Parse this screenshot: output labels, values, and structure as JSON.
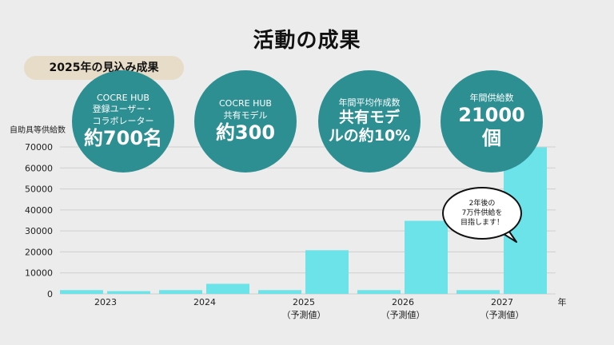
{
  "page": {
    "title": "活動の成果",
    "badge": "2025年の見込み成果",
    "callout": "2年後の\n7万件供給を\n目指します！"
  },
  "stats": [
    {
      "small": "COCRE HUB\n登録ユーザー・\nコラボレーター",
      "large": "約700名"
    },
    {
      "small": "COCRE HUB\n共有モデル",
      "large": "約300"
    },
    {
      "small": "年間平均作成数",
      "large": "共有モデ\nルの約10%"
    },
    {
      "small": "年間供給数",
      "large": "21000\n個"
    }
  ],
  "colors": {
    "bar": "#6ce3e8",
    "circle": "#2e8f93",
    "grid": "#cfcfcf",
    "badge": "#e6dcc8"
  },
  "chart_data": {
    "type": "bar",
    "ylabel": "自助具等供給数",
    "xlabel": "年",
    "ylim": [
      0,
      70000
    ],
    "yticks": [
      0,
      10000,
      20000,
      30000,
      40000,
      50000,
      60000,
      70000
    ],
    "categories": [
      "2023",
      "2024",
      "2025\n（予測値）",
      "2026\n（予測値）",
      "2027\n（予測値）"
    ],
    "series": [
      {
        "values": [
          1800,
          1800,
          1800,
          1800,
          1800
        ]
      },
      {
        "values": [
          1300,
          4800,
          20800,
          34800,
          69800
        ]
      }
    ],
    "grid": true
  }
}
